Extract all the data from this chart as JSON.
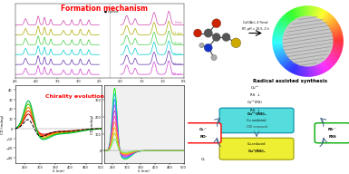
{
  "title": "Formation mechanism",
  "chirality_title": "Chirality evolution",
  "radical_title": "Radical assisted synthesis",
  "bg_color": "#ffffff",
  "nmr_colors": [
    "#cc44cc",
    "#6633aa",
    "#00cccc",
    "#44cc44",
    "#aaaa00",
    "#cc44aa"
  ],
  "nmr_labels": [
    "120 min",
    "90 min",
    "60 min",
    "30 min",
    "15 min",
    "0 min"
  ],
  "cd1_colors": [
    "#00bb44",
    "#44cc00",
    "#ff9900",
    "#ff3300",
    "#cc0000"
  ],
  "cd2_colors": [
    "#00ee00",
    "#00ccaa",
    "#2288ff",
    "#8855ee",
    "#cc33cc",
    "#ff33aa",
    "#ff6644",
    "#ffaa00",
    "#aacc00",
    "#55ee55"
  ],
  "reaction_text1": "Cu(OAc)₂ 4 %mol",
  "reaction_text2": "RT, pH = 10.5, 2 h"
}
